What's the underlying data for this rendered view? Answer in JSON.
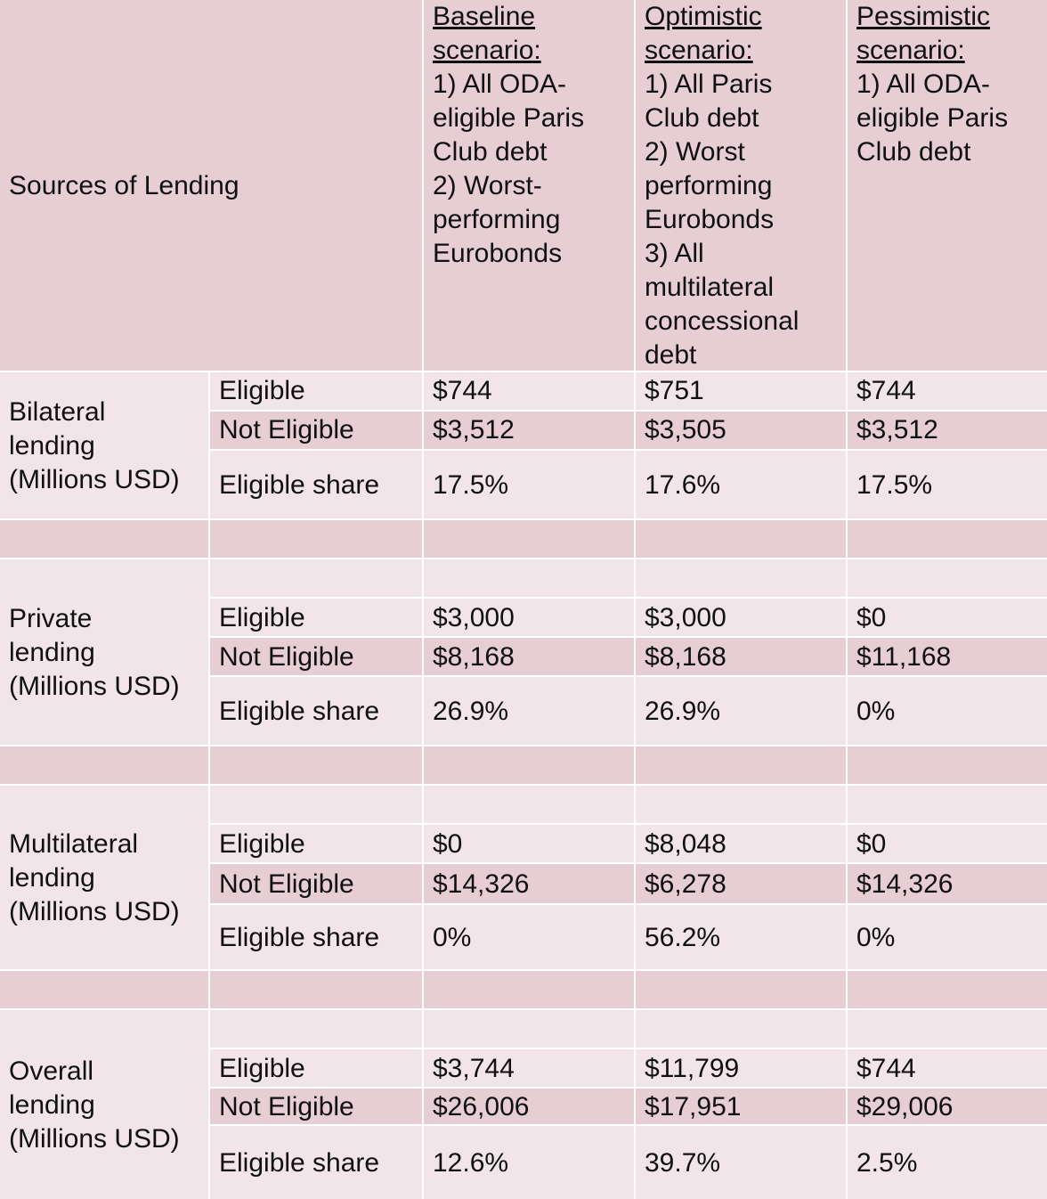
{
  "header": {
    "sources_label": "Sources of Lending",
    "scenarios": [
      {
        "title_lines": [
          "Baseline",
          "scenario:"
        ],
        "desc_lines": [
          "1) All ODA-",
          "eligible Paris",
          "Club debt",
          "2) Worst-",
          "performing",
          "Eurobonds"
        ]
      },
      {
        "title_lines": [
          "Optimistic",
          "scenario:"
        ],
        "desc_lines": [
          "1) All Paris",
          "Club debt",
          "2) Worst",
          "performing",
          "Eurobonds",
          "3) All",
          "multilateral",
          "concessional",
          "debt"
        ]
      },
      {
        "title_lines": [
          "Pessimistic",
          "scenario:"
        ],
        "desc_lines": [
          "1) All ODA-",
          "eligible Paris",
          "Club debt"
        ]
      }
    ]
  },
  "groups": [
    {
      "label_lines": [
        "Bilateral",
        "lending",
        "(Millions USD)"
      ],
      "rows": [
        {
          "label": "Eligible",
          "values": [
            "$744",
            "$751",
            "$744"
          ]
        },
        {
          "label": "Not Eligible",
          "values": [
            "$3,512",
            "$3,505",
            "$3,512"
          ]
        },
        {
          "label": "Eligible share",
          "values": [
            "17.5%",
            "17.6%",
            "17.5%"
          ]
        }
      ]
    },
    {
      "label_lines": [
        "Private",
        "lending",
        "(Millions USD)"
      ],
      "rows": [
        {
          "label": "Eligible",
          "values": [
            "$3,000",
            "$3,000",
            "$0"
          ]
        },
        {
          "label": "Not Eligible",
          "values": [
            "$8,168",
            "$8,168",
            "$11,168"
          ]
        },
        {
          "label": "Eligible share",
          "values": [
            "26.9%",
            "26.9%",
            "0%"
          ]
        }
      ]
    },
    {
      "label_lines": [
        "Multilateral",
        "lending",
        "(Millions USD)"
      ],
      "rows": [
        {
          "label": "Eligible",
          "values": [
            "$0",
            "$8,048",
            "$0"
          ]
        },
        {
          "label": "Not Eligible",
          "values": [
            "$14,326",
            "$6,278",
            "$14,326"
          ]
        },
        {
          "label": "Eligible share",
          "values": [
            "0%",
            "56.2%",
            "0%"
          ]
        }
      ]
    },
    {
      "label_lines": [
        "Overall",
        "lending",
        "(Millions USD)"
      ],
      "rows": [
        {
          "label": "Eligible",
          "values": [
            "$3,744",
            "$11,799",
            "$744"
          ]
        },
        {
          "label": "Not Eligible",
          "values": [
            "$26,006",
            "$17,951",
            "$29,006"
          ]
        },
        {
          "label": "Eligible share",
          "values": [
            "12.6%",
            "39.7%",
            "2.5%"
          ]
        }
      ]
    }
  ],
  "colors": {
    "header_bg": "#e7cdd4",
    "cell_bg": "#f1e5e9",
    "grid_line": "#ffffff",
    "text": "#111111"
  }
}
